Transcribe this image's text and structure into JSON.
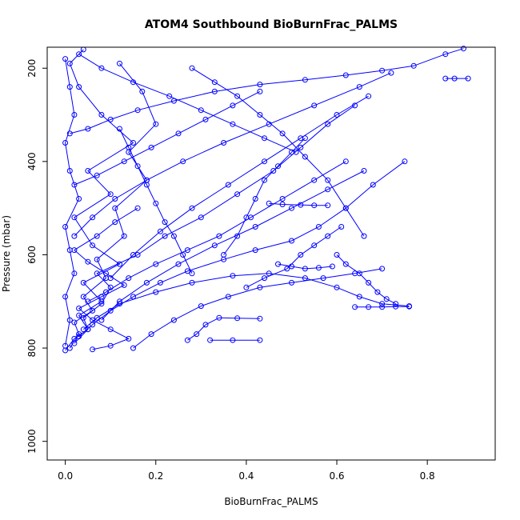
{
  "chart_data": {
    "type": "line",
    "title": "ATOM4 Southbound BioBurnFrac_PALMS",
    "xlabel": "BioBurnFrac_PALMS",
    "ylabel": "Pressure (mbar)",
    "xlim": [
      -0.04,
      0.95
    ],
    "ylim": [
      1040,
      155
    ],
    "y_reversed": true,
    "xticks": [
      0.0,
      0.2,
      0.4,
      0.6,
      0.8
    ],
    "xtick_labels": [
      "0.0",
      "0.2",
      "0.4",
      "0.6",
      "0.8"
    ],
    "yticks": [
      200,
      400,
      600,
      800,
      1000
    ],
    "ytick_labels": [
      "200",
      "400",
      "600",
      "800",
      "1000"
    ],
    "grid": false,
    "color": "#0000ff",
    "markers": "open-circle",
    "series": [
      {
        "x": [
          0.0,
          0.02,
          0.05,
          0.03,
          0.08,
          0.04,
          0.12,
          0.06,
          0.02,
          0.1,
          0.05,
          0.15,
          0.08,
          0.03,
          0.01,
          0.04
        ],
        "y": [
          805,
          780,
          760,
          730,
          700,
          660,
          620,
          580,
          520,
          470,
          420,
          360,
          300,
          240,
          190,
          160
        ]
      },
      {
        "x": [
          0.01,
          0.03,
          0.02,
          0.06,
          0.04,
          0.09,
          0.07,
          0.13,
          0.11,
          0.18,
          0.14,
          0.2,
          0.17,
          0.12
        ],
        "y": [
          800,
          770,
          745,
          720,
          690,
          650,
          610,
          560,
          500,
          440,
          380,
          320,
          250,
          190
        ]
      },
      {
        "x": [
          0.02,
          0.05,
          0.04,
          0.08,
          0.1,
          0.07,
          0.16,
          0.22,
          0.3,
          0.38,
          0.46,
          0.52,
          0.58,
          0.64
        ],
        "y": [
          790,
          760,
          735,
          705,
          670,
          640,
          600,
          560,
          520,
          470,
          420,
          370,
          320,
          280
        ]
      },
      {
        "x": [
          0.03,
          0.06,
          0.1,
          0.15,
          0.21,
          0.27,
          0.35,
          0.42,
          0.5,
          0.56,
          0.62,
          0.68,
          0.75
        ],
        "y": [
          775,
          750,
          720,
          690,
          660,
          635,
          610,
          590,
          570,
          540,
          500,
          450,
          400
        ]
      },
      {
        "x": [
          0.04,
          0.07,
          0.12,
          0.2,
          0.28,
          0.37,
          0.45,
          0.53,
          0.6,
          0.65,
          0.7,
          0.76
        ],
        "y": [
          760,
          735,
          705,
          680,
          660,
          645,
          640,
          650,
          670,
          690,
          705,
          710
        ]
      },
      {
        "x": [
          0.64,
          0.67,
          0.7,
          0.73,
          0.76
        ],
        "y": [
          712,
          712,
          712,
          711,
          711
        ]
      },
      {
        "x": [
          0.27,
          0.29,
          0.31,
          0.34,
          0.38,
          0.43
        ],
        "y": [
          783,
          770,
          750,
          735,
          736,
          737
        ]
      },
      {
        "x": [
          0.32,
          0.37,
          0.43
        ],
        "y": [
          783,
          783,
          783
        ]
      },
      {
        "x": [
          0.06,
          0.1,
          0.14,
          0.1,
          0.06,
          0.03,
          0.08,
          0.13,
          0.09,
          0.05,
          0.02,
          0.07,
          0.11,
          0.16
        ],
        "y": [
          803,
          795,
          780,
          760,
          740,
          715,
          690,
          665,
          640,
          615,
          590,
          560,
          530,
          500
        ]
      },
      {
        "x": [
          0.0,
          0.01,
          0.0,
          0.02,
          0.01,
          0.0,
          0.03,
          0.01,
          0.0,
          0.02,
          0.01,
          0.0
        ],
        "y": [
          795,
          740,
          690,
          640,
          590,
          540,
          480,
          420,
          360,
          300,
          240,
          180
        ]
      },
      {
        "x": [
          0.05,
          0.09,
          0.14,
          0.2,
          0.27,
          0.34,
          0.41,
          0.48,
          0.55,
          0.62
        ],
        "y": [
          700,
          680,
          650,
          620,
          590,
          560,
          520,
          480,
          440,
          400
        ]
      },
      {
        "x": [
          0.08,
          0.12,
          0.18,
          0.25,
          0.33,
          0.42,
          0.5,
          0.58,
          0.66
        ],
        "y": [
          740,
          700,
          660,
          620,
          580,
          540,
          500,
          460,
          420
        ]
      },
      {
        "x": [
          0.1,
          0.15,
          0.21,
          0.28,
          0.36,
          0.44,
          0.52,
          0.6,
          0.67
        ],
        "y": [
          650,
          600,
          550,
          500,
          450,
          400,
          350,
          300,
          260
        ]
      },
      {
        "x": [
          0.02,
          0.06,
          0.11,
          0.18,
          0.26,
          0.35,
          0.45,
          0.55,
          0.65,
          0.72
        ],
        "y": [
          560,
          520,
          480,
          440,
          400,
          360,
          320,
          280,
          240,
          210
        ]
      },
      {
        "x": [
          0.01,
          0.05,
          0.1,
          0.16,
          0.24,
          0.33,
          0.43,
          0.53,
          0.62,
          0.7,
          0.77,
          0.84,
          0.88
        ],
        "y": [
          340,
          330,
          310,
          290,
          270,
          250,
          235,
          225,
          215,
          205,
          195,
          170,
          158
        ]
      },
      {
        "x": [
          0.84,
          0.86,
          0.89
        ],
        "y": [
          222,
          222,
          222
        ]
      },
      {
        "x": [
          0.03,
          0.08,
          0.15,
          0.23,
          0.3,
          0.37,
          0.44,
          0.51
        ],
        "y": [
          170,
          200,
          230,
          260,
          290,
          320,
          350,
          380
        ]
      },
      {
        "x": [
          0.02,
          0.07,
          0.13,
          0.19,
          0.25,
          0.31,
          0.37,
          0.43
        ],
        "y": [
          450,
          430,
          400,
          370,
          340,
          310,
          280,
          250
        ]
      },
      {
        "x": [
          0.45,
          0.48,
          0.52,
          0.55,
          0.58
        ],
        "y": [
          490,
          492,
          493,
          494,
          494
        ]
      },
      {
        "x": [
          0.4,
          0.44,
          0.49,
          0.52,
          0.55,
          0.58,
          0.61
        ],
        "y": [
          670,
          650,
          630,
          600,
          580,
          560,
          540
        ]
      },
      {
        "x": [
          0.15,
          0.19,
          0.24,
          0.3,
          0.36,
          0.43,
          0.5,
          0.57,
          0.64,
          0.7
        ],
        "y": [
          800,
          770,
          740,
          710,
          690,
          670,
          660,
          650,
          640,
          630
        ]
      },
      {
        "x": [
          0.12,
          0.14,
          0.16,
          0.18,
          0.2,
          0.22,
          0.24,
          0.26,
          0.28
        ],
        "y": [
          330,
          370,
          410,
          450,
          490,
          530,
          560,
          600,
          640
        ]
      },
      {
        "x": [
          0.6,
          0.62,
          0.65,
          0.67,
          0.69,
          0.71,
          0.73
        ],
        "y": [
          600,
          620,
          640,
          660,
          680,
          695,
          705
        ]
      },
      {
        "x": [
          0.47,
          0.5,
          0.53,
          0.56,
          0.59
        ],
        "y": [
          620,
          625,
          630,
          628,
          625
        ]
      },
      {
        "x": [
          0.28,
          0.33,
          0.38,
          0.43,
          0.48,
          0.53,
          0.58,
          0.62,
          0.66
        ],
        "y": [
          200,
          230,
          260,
          300,
          340,
          390,
          440,
          500,
          560
        ]
      },
      {
        "x": [
          0.35,
          0.38,
          0.4,
          0.42,
          0.44,
          0.47,
          0.5,
          0.53
        ],
        "y": [
          600,
          560,
          520,
          480,
          440,
          410,
          380,
          350
        ]
      }
    ]
  }
}
